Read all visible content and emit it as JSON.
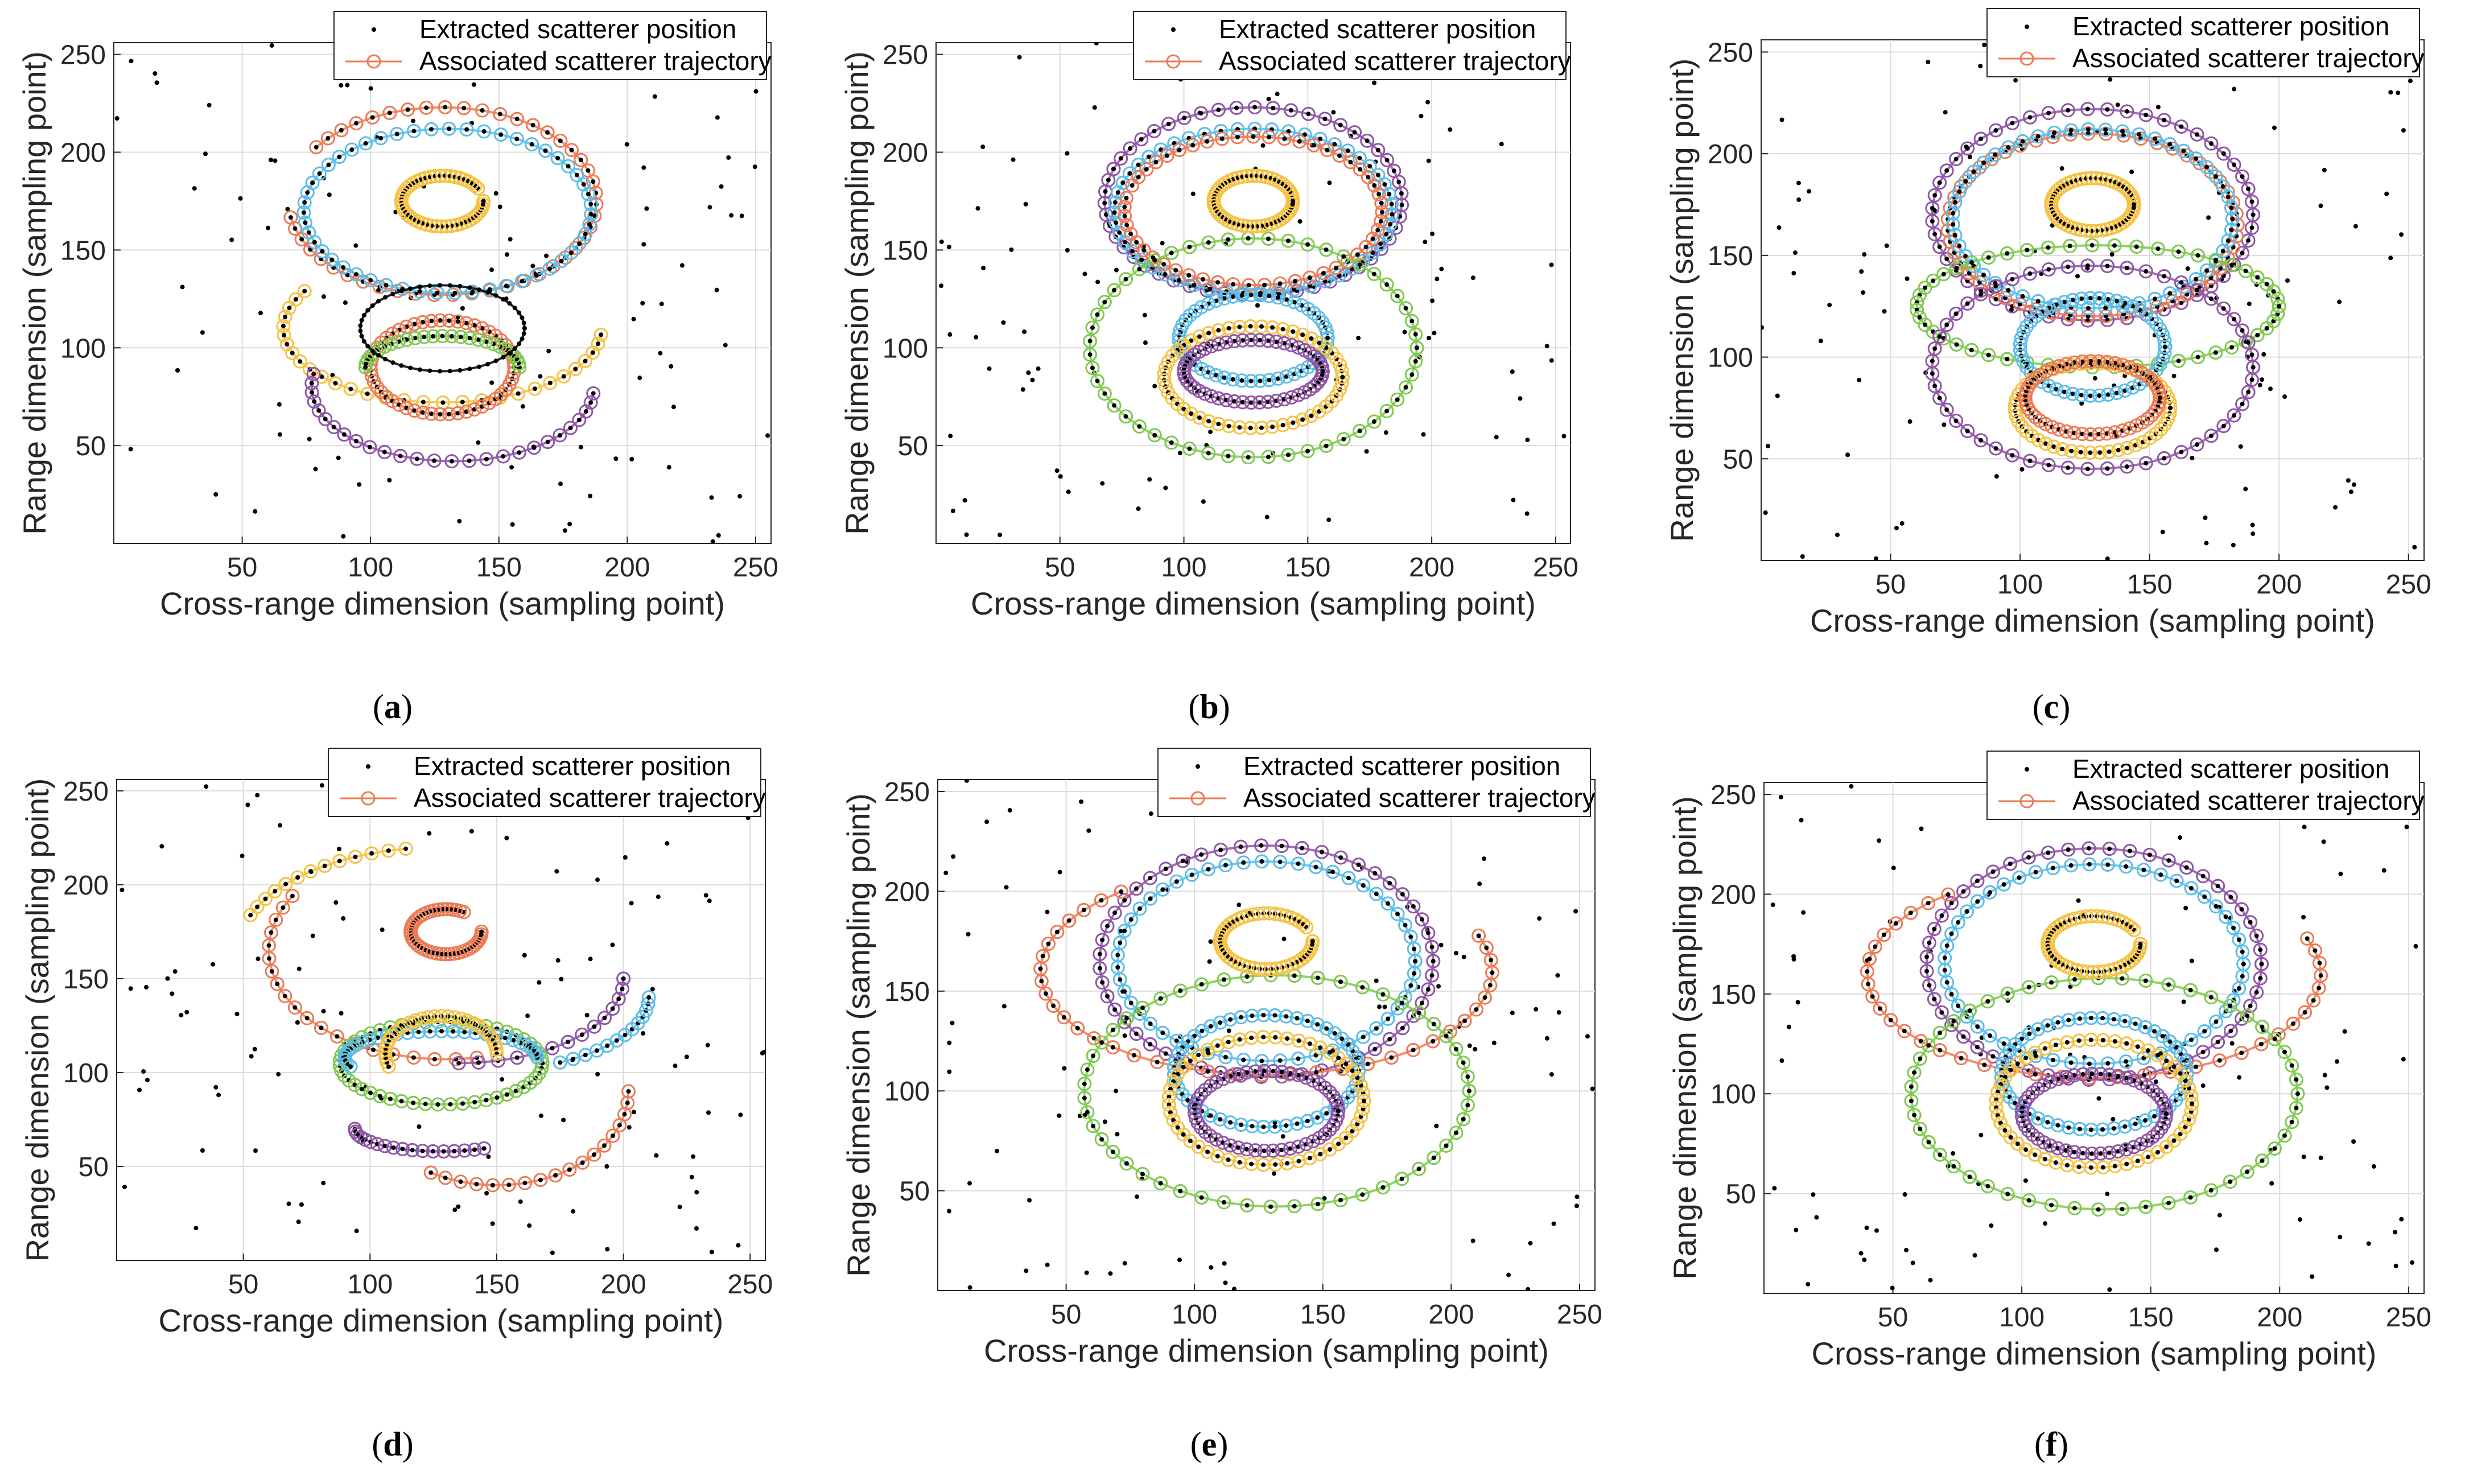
{
  "figure": {
    "legend": {
      "extracted_label": "Extracted scatterer position",
      "associated_label": "Associated scatterer trajectory"
    },
    "colors": {
      "extracted": "#000000",
      "associated": "#ec7a55",
      "series": [
        "#5bbde8",
        "#ec7a55",
        "#f5c244",
        "#8f55a6",
        "#7fc94f",
        "#000000"
      ]
    }
  },
  "chart_data": [
    {
      "panel": "a",
      "caption": "(a)",
      "type": "scatter",
      "xlabel": "Cross-range dimension (sampling point)",
      "ylabel": "Range dimension (sampling point)",
      "xlim": [
        0,
        256
      ],
      "ylim": [
        0,
        256
      ],
      "xticks": [
        "50",
        "100",
        "150",
        "200",
        "250"
      ],
      "yticks": [
        "50",
        "100",
        "150",
        "200",
        "250"
      ],
      "grid": true,
      "legend_position": "top-right",
      "series": [
        {
          "name": "Associated scatterer trajectory",
          "color": "#ec7a55",
          "shape": "arc",
          "cx": 128,
          "cy": 175,
          "rx": 60,
          "ry": 48,
          "start": 190,
          "end": 505
        },
        {
          "name": "Associated scatterer trajectory",
          "color": "#5bbde8",
          "shape": "arc",
          "cx": 130,
          "cy": 170,
          "rx": 56,
          "ry": 42,
          "start": 160,
          "end": 520
        },
        {
          "name": "Associated scatterer trajectory",
          "color": "#f5c244",
          "shape": "arc",
          "cx": 128,
          "cy": 110,
          "rx": 62,
          "ry": 38,
          "start": 150,
          "end": 355
        },
        {
          "name": "Associated scatterer trajectory",
          "color": "#ec7a55",
          "shape": "arc",
          "cx": 128,
          "cy": 90,
          "rx": 28,
          "ry": 24,
          "start": 0,
          "end": 360
        },
        {
          "name": "Associated scatterer trajectory",
          "color": "#8f55a6",
          "shape": "arc",
          "cx": 132,
          "cy": 80,
          "rx": 55,
          "ry": 38,
          "start": 170,
          "end": 355
        },
        {
          "name": "Associated scatterer trajectory",
          "color": "#7fc94f",
          "shape": "arc",
          "cx": 128,
          "cy": 90,
          "rx": 30,
          "ry": 16,
          "start": 0,
          "end": 180
        },
        {
          "name": "Associated scatterer trajectory",
          "color": "#000000",
          "shape": "arc",
          "cx": 128,
          "cy": 110,
          "rx": 32,
          "ry": 22,
          "start": 0,
          "end": 360
        },
        {
          "name": "Associated scatterer trajectory",
          "color": "#f5c244",
          "shape": "arc",
          "cx": 128,
          "cy": 175,
          "rx": 16,
          "ry": 13,
          "start": 30,
          "end": 360
        }
      ]
    },
    {
      "panel": "b",
      "caption": "(b)",
      "type": "scatter",
      "xlabel": "Cross-range dimension (sampling point)",
      "ylabel": "Range dimension (sampling point)",
      "xlim": [
        0,
        256
      ],
      "ylim": [
        0,
        256
      ],
      "xticks": [
        "50",
        "100",
        "150",
        "200",
        "250"
      ],
      "yticks": [
        "50",
        "100",
        "150",
        "200",
        "250"
      ],
      "grid": true,
      "legend_position": "top-right",
      "series": [
        {
          "name": "Associated scatterer trajectory",
          "color": "#8f55a6",
          "shape": "arc",
          "cx": 128,
          "cy": 175,
          "rx": 60,
          "ry": 48,
          "start": 160,
          "end": 520
        },
        {
          "name": "Associated scatterer trajectory",
          "color": "#5bbde8",
          "shape": "arc",
          "cx": 128,
          "cy": 170,
          "rx": 56,
          "ry": 42,
          "start": 160,
          "end": 520
        },
        {
          "name": "Associated scatterer trajectory",
          "color": "#ec7a55",
          "shape": "arc",
          "cx": 128,
          "cy": 170,
          "rx": 52,
          "ry": 38,
          "start": 170,
          "end": 520
        },
        {
          "name": "Associated scatterer trajectory",
          "color": "#7fc94f",
          "shape": "arc",
          "cx": 128,
          "cy": 100,
          "rx": 66,
          "ry": 56,
          "start": 0,
          "end": 360
        },
        {
          "name": "Associated scatterer trajectory",
          "color": "#5bbde8",
          "shape": "arc",
          "cx": 128,
          "cy": 105,
          "rx": 30,
          "ry": 22,
          "start": 0,
          "end": 360
        },
        {
          "name": "Associated scatterer trajectory",
          "color": "#f5c244",
          "shape": "arc",
          "cx": 128,
          "cy": 85,
          "rx": 36,
          "ry": 26,
          "start": 0,
          "end": 360
        },
        {
          "name": "Associated scatterer trajectory",
          "color": "#8f55a6",
          "shape": "arc",
          "cx": 128,
          "cy": 88,
          "rx": 28,
          "ry": 16,
          "start": 0,
          "end": 360
        },
        {
          "name": "Associated scatterer trajectory",
          "color": "#f5c244",
          "shape": "arc",
          "cx": 128,
          "cy": 175,
          "rx": 16,
          "ry": 13,
          "start": 0,
          "end": 360
        }
      ]
    },
    {
      "panel": "c",
      "caption": "(c)",
      "type": "scatter",
      "xlabel": "Cross-range dimension (sampling point)",
      "ylabel": "Range dimension (sampling point)",
      "xlim": [
        0,
        256
      ],
      "ylim": [
        0,
        256
      ],
      "xticks": [
        "50",
        "100",
        "150",
        "200",
        "250"
      ],
      "yticks": [
        "50",
        "100",
        "150",
        "200",
        "250"
      ],
      "grid": true,
      "legend_position": "top-right",
      "series": [
        {
          "name": "Associated scatterer trajectory",
          "color": "#8f55a6",
          "shape": "arc",
          "cx": 128,
          "cy": 170,
          "rx": 62,
          "ry": 52,
          "start": 0,
          "end": 360
        },
        {
          "name": "Associated scatterer trajectory",
          "color": "#ec7a55",
          "shape": "arc",
          "cx": 128,
          "cy": 165,
          "rx": 56,
          "ry": 45,
          "start": 0,
          "end": 360
        },
        {
          "name": "Associated scatterer trajectory",
          "color": "#5bbde8",
          "shape": "arc",
          "cx": 128,
          "cy": 168,
          "rx": 54,
          "ry": 44,
          "start": 0,
          "end": 360
        },
        {
          "name": "Associated scatterer trajectory",
          "color": "#7fc94f",
          "shape": "arc",
          "cx": 130,
          "cy": 125,
          "rx": 70,
          "ry": 30,
          "start": 0,
          "end": 360
        },
        {
          "name": "Associated scatterer trajectory",
          "color": "#8f55a6",
          "shape": "arc",
          "cx": 128,
          "cy": 95,
          "rx": 62,
          "ry": 50,
          "start": 0,
          "end": 360
        },
        {
          "name": "Associated scatterer trajectory",
          "color": "#5bbde8",
          "shape": "arc",
          "cx": 128,
          "cy": 105,
          "rx": 28,
          "ry": 24,
          "start": 0,
          "end": 360
        },
        {
          "name": "Associated scatterer trajectory",
          "color": "#f5c244",
          "shape": "arc",
          "cx": 128,
          "cy": 75,
          "rx": 30,
          "ry": 22,
          "start": 0,
          "end": 360
        },
        {
          "name": "Associated scatterer trajectory",
          "color": "#ec7a55",
          "shape": "arc",
          "cx": 128,
          "cy": 80,
          "rx": 26,
          "ry": 18,
          "start": 0,
          "end": 360
        },
        {
          "name": "Associated scatterer trajectory",
          "color": "#f5c244",
          "shape": "arc",
          "cx": 128,
          "cy": 175,
          "rx": 16,
          "ry": 13,
          "start": 0,
          "end": 360
        }
      ]
    },
    {
      "panel": "d",
      "caption": "(d)",
      "type": "scatter",
      "xlabel": "Cross-range dimension (sampling point)",
      "ylabel": "Range dimension (sampling point)",
      "xlim": [
        0,
        256
      ],
      "ylim": [
        0,
        256
      ],
      "xticks": [
        "50",
        "100",
        "150",
        "200",
        "250"
      ],
      "yticks": [
        "50",
        "100",
        "150",
        "200",
        "250"
      ],
      "grid": true,
      "legend_position": "top-right",
      "series": [
        {
          "name": "Associated scatterer trajectory",
          "color": "#f5c244",
          "shape": "arc",
          "cx": 128,
          "cy": 165,
          "rx": 80,
          "ry": 55,
          "start": 100,
          "end": 160
        },
        {
          "name": "Associated scatterer trajectory",
          "color": "#ec7a55",
          "shape": "arc",
          "cx": 130,
          "cy": 165,
          "rx": 70,
          "ry": 58,
          "start": 150,
          "end": 280
        },
        {
          "name": "Associated scatterer trajectory",
          "color": "#8f55a6",
          "shape": "arc",
          "cx": 135,
          "cy": 150,
          "rx": 65,
          "ry": 45,
          "start": 270,
          "end": 360
        },
        {
          "name": "Associated scatterer trajectory",
          "color": "#5bbde8",
          "shape": "arc",
          "cx": 140,
          "cy": 140,
          "rx": 70,
          "ry": 40,
          "start": 300,
          "end": 360
        },
        {
          "name": "Associated scatterer trajectory",
          "color": "#7fc94f",
          "shape": "arc",
          "cx": 128,
          "cy": 105,
          "rx": 40,
          "ry": 22,
          "start": 0,
          "end": 360
        },
        {
          "name": "Associated scatterer trajectory",
          "color": "#5bbde8",
          "shape": "arc",
          "cx": 128,
          "cy": 108,
          "rx": 38,
          "ry": 14,
          "start": 0,
          "end": 200
        },
        {
          "name": "Associated scatterer trajectory",
          "color": "#f5c244",
          "shape": "arc",
          "cx": 128,
          "cy": 110,
          "rx": 22,
          "ry": 20,
          "start": 0,
          "end": 200
        },
        {
          "name": "Associated scatterer trajectory",
          "color": "#8f55a6",
          "shape": "arc",
          "cx": 128,
          "cy": 70,
          "rx": 34,
          "ry": 12,
          "start": 180,
          "end": 300
        },
        {
          "name": "Associated scatterer trajectory",
          "color": "#ec7a55",
          "shape": "arc",
          "cx": 150,
          "cy": 90,
          "rx": 52,
          "ry": 50,
          "start": 240,
          "end": 360
        },
        {
          "name": "Associated scatterer trajectory",
          "color": "#ec7a55",
          "shape": "arc",
          "cx": 130,
          "cy": 175,
          "rx": 14,
          "ry": 12,
          "start": 60,
          "end": 360
        }
      ]
    },
    {
      "panel": "e",
      "caption": "(e)",
      "type": "scatter",
      "xlabel": "Cross-range dimension (sampling point)",
      "ylabel": "Range dimension (sampling point)",
      "xlim": [
        0,
        256
      ],
      "ylim": [
        0,
        256
      ],
      "xticks": [
        "50",
        "100",
        "150",
        "200",
        "250"
      ],
      "yticks": [
        "50",
        "100",
        "150",
        "200",
        "250"
      ],
      "grid": true,
      "legend_position": "top-right",
      "series": [
        {
          "name": "Associated scatterer trajectory",
          "color": "#8f55a6",
          "shape": "arc",
          "cx": 128,
          "cy": 165,
          "rx": 65,
          "ry": 58,
          "start": 0,
          "end": 360
        },
        {
          "name": "Associated scatterer trajectory",
          "color": "#5bbde8",
          "shape": "arc",
          "cx": 128,
          "cy": 165,
          "rx": 58,
          "ry": 50,
          "start": 0,
          "end": 360
        },
        {
          "name": "Associated scatterer trajectory",
          "color": "#ec7a55",
          "shape": "arc",
          "cx": 128,
          "cy": 160,
          "rx": 88,
          "ry": 52,
          "start": 130,
          "end": 380
        },
        {
          "name": "Associated scatterer trajectory",
          "color": "#7fc94f",
          "shape": "arc",
          "cx": 132,
          "cy": 100,
          "rx": 75,
          "ry": 58,
          "start": 0,
          "end": 360
        },
        {
          "name": "Associated scatterer trajectory",
          "color": "#5bbde8",
          "shape": "arc",
          "cx": 128,
          "cy": 110,
          "rx": 36,
          "ry": 28,
          "start": 0,
          "end": 360
        },
        {
          "name": "Associated scatterer trajectory",
          "color": "#f5c244",
          "shape": "arc",
          "cx": 128,
          "cy": 95,
          "rx": 38,
          "ry": 32,
          "start": 0,
          "end": 360
        },
        {
          "name": "Associated scatterer trajectory",
          "color": "#8f55a6",
          "shape": "arc",
          "cx": 128,
          "cy": 90,
          "rx": 28,
          "ry": 20,
          "start": 0,
          "end": 360
        },
        {
          "name": "Associated scatterer trajectory",
          "color": "#f5c244",
          "shape": "arc",
          "cx": 128,
          "cy": 175,
          "rx": 18,
          "ry": 14,
          "start": 30,
          "end": 360
        }
      ]
    },
    {
      "panel": "f",
      "caption": "(f)",
      "type": "scatter",
      "xlabel": "Cross-range dimension (sampling point)",
      "ylabel": "Range dimension (sampling point)",
      "xlim": [
        0,
        256
      ],
      "ylim": [
        0,
        256
      ],
      "xticks": [
        "50",
        "100",
        "150",
        "200",
        "250"
      ],
      "yticks": [
        "50",
        "100",
        "150",
        "200",
        "250"
      ],
      "grid": true,
      "legend_position": "top-right",
      "series": [
        {
          "name": "Associated scatterer trajectory",
          "color": "#8f55a6",
          "shape": "arc",
          "cx": 128,
          "cy": 165,
          "rx": 65,
          "ry": 58,
          "start": 0,
          "end": 360
        },
        {
          "name": "Associated scatterer trajectory",
          "color": "#5bbde8",
          "shape": "arc",
          "cx": 128,
          "cy": 165,
          "rx": 58,
          "ry": 50,
          "start": 0,
          "end": 360
        },
        {
          "name": "Associated scatterer trajectory",
          "color": "#ec7a55",
          "shape": "arc",
          "cx": 128,
          "cy": 160,
          "rx": 88,
          "ry": 52,
          "start": 130,
          "end": 380
        },
        {
          "name": "Associated scatterer trajectory",
          "color": "#7fc94f",
          "shape": "arc",
          "cx": 132,
          "cy": 100,
          "rx": 75,
          "ry": 58,
          "start": 0,
          "end": 360
        },
        {
          "name": "Associated scatterer trajectory",
          "color": "#5bbde8",
          "shape": "arc",
          "cx": 128,
          "cy": 110,
          "rx": 36,
          "ry": 28,
          "start": 0,
          "end": 360
        },
        {
          "name": "Associated scatterer trajectory",
          "color": "#f5c244",
          "shape": "arc",
          "cx": 128,
          "cy": 95,
          "rx": 38,
          "ry": 32,
          "start": 0,
          "end": 360
        },
        {
          "name": "Associated scatterer trajectory",
          "color": "#8f55a6",
          "shape": "arc",
          "cx": 128,
          "cy": 90,
          "rx": 28,
          "ry": 20,
          "start": 0,
          "end": 360
        },
        {
          "name": "Associated scatterer trajectory",
          "color": "#f5c244",
          "shape": "arc",
          "cx": 128,
          "cy": 175,
          "rx": 18,
          "ry": 14,
          "start": 30,
          "end": 360
        }
      ]
    }
  ]
}
